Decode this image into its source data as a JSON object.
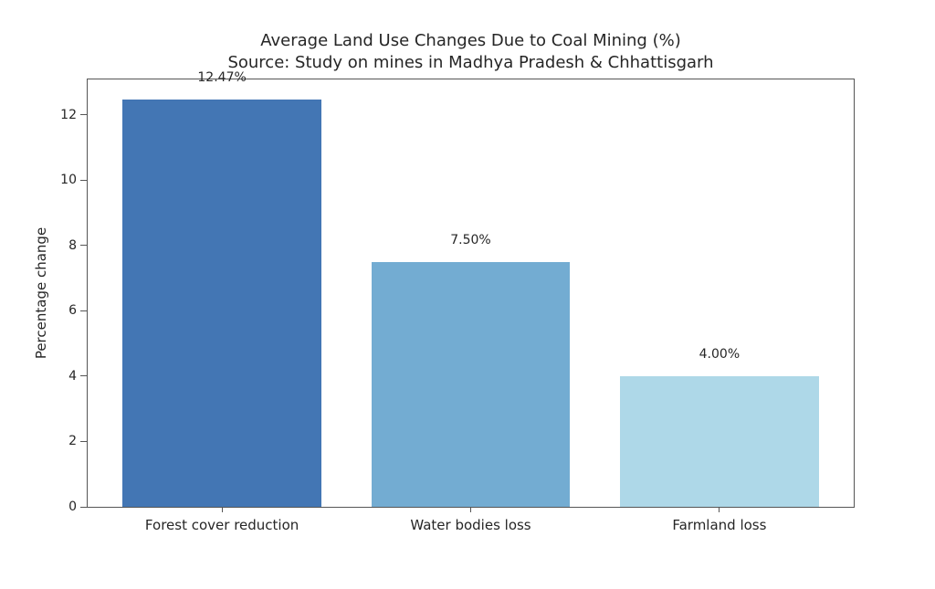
{
  "chart_data": {
    "type": "bar",
    "title": "Average Land Use Changes Due to Coal Mining (%)",
    "subtitle": "Source: Study on mines in Madhya Pradesh & Chhattisgarh",
    "categories": [
      "Forest cover reduction",
      "Water bodies loss",
      "Farmland loss"
    ],
    "values": [
      12.47,
      7.5,
      4.0
    ],
    "value_labels": [
      "12.47%",
      "7.50%",
      "4.00%"
    ],
    "bar_colors": [
      "#4376b4",
      "#73acd2",
      "#aed8e8"
    ],
    "xlabel": "",
    "ylabel": "Percentage change",
    "yticks": [
      0,
      2,
      4,
      6,
      8,
      10,
      12
    ],
    "ylim": [
      0,
      13.09
    ],
    "xlim": [
      -0.54,
      2.54
    ],
    "bar_width": 0.8,
    "grid": false,
    "legend": null,
    "label_offset_units": 0.5
  },
  "colors": {
    "background": "#ffffff",
    "spine": "#555555",
    "text": "#262626"
  }
}
